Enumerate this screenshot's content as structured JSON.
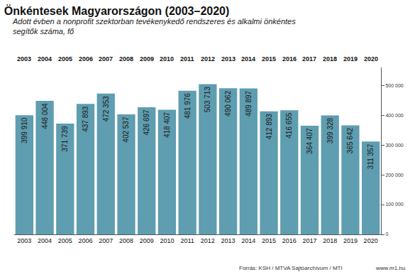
{
  "chart_data": {
    "type": "bar",
    "title": "Önkéntesek Magyarországon (2003–2020)",
    "subtitle": "Adott évben a nonprofit szektorban tevékenykedő rendszeres és alkalmi önkéntes segítők száma, fő",
    "annotations": [
      "Forrás: KSH / MTVA Sajtóarchívum / MTI",
      "www.m1.hu"
    ],
    "categories": [
      "2003",
      "2004",
      "2005",
      "2006",
      "2007",
      "2008",
      "2009",
      "2010",
      "2011",
      "2012",
      "2013",
      "2014",
      "2015",
      "2016",
      "2017",
      "2018",
      "2019",
      "2020"
    ],
    "values": [
      399910,
      448004,
      371739,
      437893,
      472353,
      402537,
      426697,
      418407,
      481976,
      503713,
      490062,
      489897,
      412893,
      416655,
      364407,
      399328,
      365642,
      311357
    ],
    "value_labels": [
      "399 910",
      "448 004",
      "371 739",
      "437 893",
      "472 353",
      "402 537",
      "426 697",
      "418 407",
      "481 976",
      "503 713",
      "490 062",
      "489 897",
      "412 893",
      "416 655",
      "364 407",
      "399 328",
      "365 642",
      "311 357"
    ],
    "color": "#5f9db0",
    "data_labels": true,
    "ylim": [
      0,
      560000
    ],
    "yticks": [
      0,
      {
        "value": 100000,
        "label": "100 000"
      },
      {
        "value": 200000,
        "label": "200 000"
      },
      {
        "value": 300000,
        "label": "300 000"
      },
      {
        "value": 400000,
        "label": "400 000"
      },
      {
        "value": 500000,
        "label": "500 000"
      }
    ],
    "grid": false
  }
}
